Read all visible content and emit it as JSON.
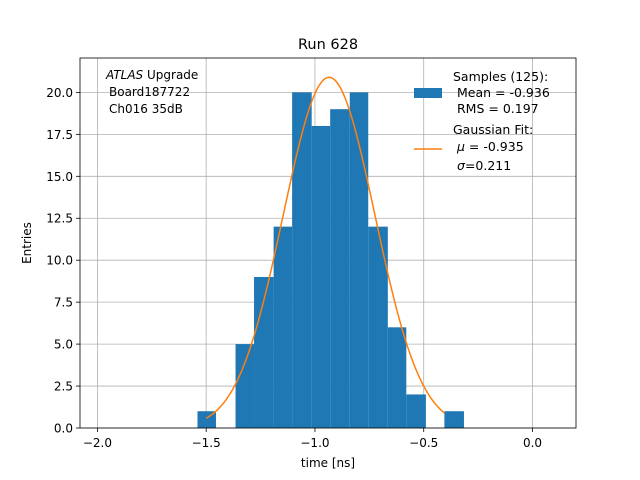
{
  "chart_data": {
    "type": "bar",
    "title": "Run 628",
    "xlabel": "time [ns]",
    "ylabel": "Entries",
    "xlim": [
      -2.08,
      0.2
    ],
    "ylim": [
      0,
      22.05
    ],
    "grid": true,
    "x_ticks": [
      -2.0,
      -1.5,
      -1.0,
      -0.5,
      0.0
    ],
    "x_tick_labels": [
      "−2.0",
      "−1.5",
      "−1.0",
      "−0.5",
      "0.0"
    ],
    "y_ticks": [
      0,
      2.5,
      5,
      7.5,
      10,
      12.5,
      15,
      17.5,
      20
    ],
    "y_tick_labels": [
      "0.0",
      "2.5",
      "5.0",
      "7.5",
      "10.0",
      "12.5",
      "15.0",
      "17.5",
      "20.0"
    ],
    "histogram": {
      "name": "Samples (125)",
      "color": "#1f77b4",
      "bins": [
        {
          "x0": -1.54,
          "x1": -1.455,
          "count": 1
        },
        {
          "x0": -1.455,
          "x1": -1.365,
          "count": 0
        },
        {
          "x0": -1.365,
          "x1": -1.28,
          "count": 5
        },
        {
          "x0": -1.28,
          "x1": -1.19,
          "count": 9
        },
        {
          "x0": -1.19,
          "x1": -1.105,
          "count": 12
        },
        {
          "x0": -1.105,
          "x1": -1.015,
          "count": 20
        },
        {
          "x0": -1.015,
          "x1": -0.93,
          "count": 18
        },
        {
          "x0": -0.93,
          "x1": -0.84,
          "count": 19
        },
        {
          "x0": -0.84,
          "x1": -0.755,
          "count": 20
        },
        {
          "x0": -0.755,
          "x1": -0.665,
          "count": 12
        },
        {
          "x0": -0.665,
          "x1": -0.58,
          "count": 6
        },
        {
          "x0": -0.58,
          "x1": -0.49,
          "count": 2
        },
        {
          "x0": -0.49,
          "x1": -0.405,
          "count": 0
        },
        {
          "x0": -0.405,
          "x1": -0.315,
          "count": 1
        }
      ]
    },
    "fit": {
      "name": "Gaussian Fit:",
      "color": "#ff7f0e",
      "amplitude": 20.9,
      "mu": -0.935,
      "sigma": 0.211,
      "x_range": [
        -1.5,
        -0.405
      ]
    },
    "legend": {
      "placement": "top-right",
      "samples_title": "Samples (125):",
      "samples_mean": "Mean = -0.936",
      "samples_rms": "RMS = 0.197",
      "fit_title": "Gaussian Fit:",
      "fit_mu_symbol": "μ",
      "fit_mu_value": " = -0.935",
      "fit_sigma_symbol": "σ",
      "fit_sigma_value": "=0.211"
    },
    "annotation": {
      "experiment": "ATLAS",
      "experiment_suffix": " Upgrade",
      "board": "Board187722",
      "channel": "Ch016 35dB"
    }
  }
}
